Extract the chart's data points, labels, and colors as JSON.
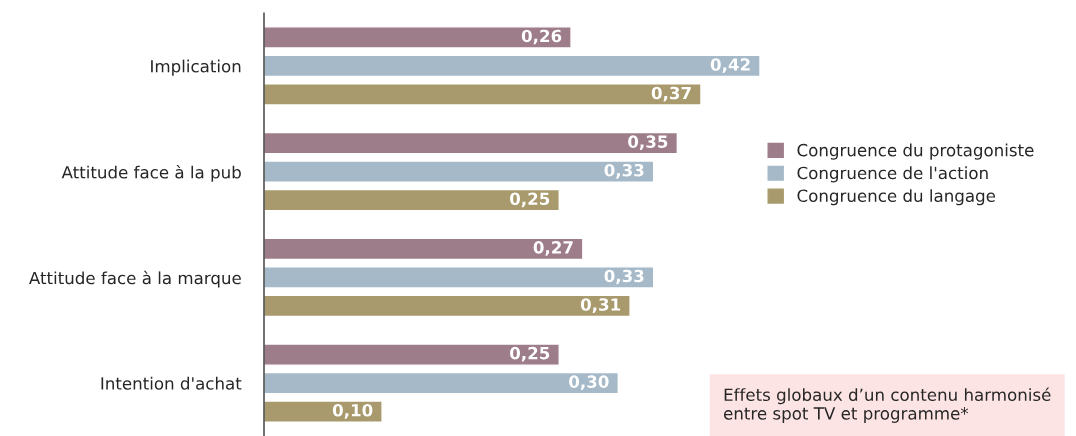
{
  "chart_data": {
    "type": "bar",
    "orientation": "horizontal",
    "categories": [
      "Implication",
      "Attitude face à la pub",
      "Attitude face à la marque",
      "Intention d'achat"
    ],
    "series": [
      {
        "name": "Congruence du protagoniste",
        "color": "#9e7d8b",
        "values": [
          0.26,
          0.35,
          0.27,
          0.25
        ],
        "value_labels": [
          "0,26",
          "0,35",
          "0,27",
          "0,25"
        ]
      },
      {
        "name": "Congruence de l'action",
        "color": "#a5b9c8",
        "values": [
          0.42,
          0.33,
          0.33,
          0.3
        ],
        "value_labels": [
          "0,42",
          "0,33",
          "0,33",
          "0,30"
        ]
      },
      {
        "name": "Congruence du langage",
        "color": "#a89a6c",
        "values": [
          0.37,
          0.25,
          0.31,
          0.1
        ],
        "value_labels": [
          "0,37",
          "0,25",
          "0,31",
          "0,10"
        ]
      }
    ],
    "tick_labels": "y",
    "grid": false,
    "legend": "right",
    "annotations": [
      "Effets globaux d’un contenu harmonisé entre spot TV et programme*"
    ]
  }
}
